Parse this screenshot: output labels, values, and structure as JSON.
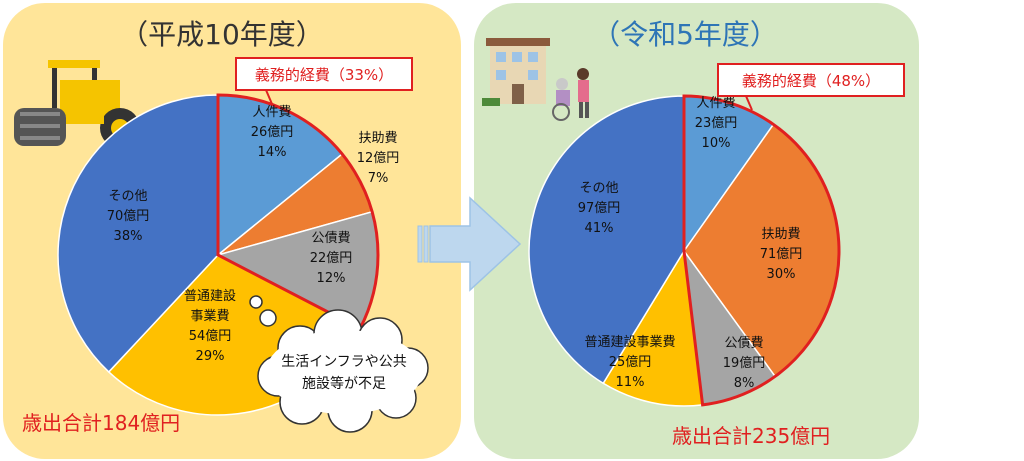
{
  "colors": {
    "left_bg": "#FFE599",
    "right_bg": "#D5E8C4",
    "jinkenhi": "#5B9BD5",
    "fujohi": "#ED7D31",
    "kosaihi": "#A5A5A5",
    "futsu": "#FFC000",
    "sonota": "#4472C4",
    "highlight": "#E02020",
    "arrow": "#BDD7EE"
  },
  "chart_data": [
    {
      "type": "pie",
      "title": "（平成10年度）",
      "total_label": "歳出合計184億円",
      "highlight_label": "義務的経費（33%）",
      "callout": [
        "生活インフラや公共",
        "施設等が不足"
      ],
      "slices": [
        {
          "key": "jinkenhi",
          "lines": [
            "人件費",
            "26億円",
            "14%"
          ],
          "value": 26,
          "percent": 14,
          "color": "#5B9BD5"
        },
        {
          "key": "fujohi",
          "lines": [
            "扶助費",
            "12億円",
            "7%"
          ],
          "value": 12,
          "percent": 7,
          "color": "#ED7D31"
        },
        {
          "key": "kosaihi",
          "lines": [
            "公債費",
            "22億円",
            "12%"
          ],
          "value": 22,
          "percent": 12,
          "color": "#A5A5A5"
        },
        {
          "key": "futsu",
          "lines": [
            "普通建設",
            "事業費",
            "54億円",
            "29%"
          ],
          "value": 54,
          "percent": 29,
          "color": "#FFC000"
        },
        {
          "key": "sonota",
          "lines": [
            "その他",
            "70億円",
            "38%"
          ],
          "value": 70,
          "percent": 38,
          "color": "#4472C4"
        }
      ]
    },
    {
      "type": "pie",
      "title": "（令和5年度）",
      "total_label": "歳出合計235億円",
      "highlight_label": "義務的経費（48%）",
      "slices": [
        {
          "key": "jinkenhi",
          "lines": [
            "人件費",
            "23億円",
            "10%"
          ],
          "value": 23,
          "percent": 10,
          "color": "#5B9BD5"
        },
        {
          "key": "fujohi",
          "lines": [
            "扶助費",
            "71億円",
            "30%"
          ],
          "value": 71,
          "percent": 30,
          "color": "#ED7D31"
        },
        {
          "key": "kosaihi",
          "lines": [
            "公債費",
            "19億円",
            "8%"
          ],
          "value": 19,
          "percent": 8,
          "color": "#A5A5A5"
        },
        {
          "key": "futsu",
          "lines": [
            "普通建設事業費",
            "25億円",
            "11%"
          ],
          "value": 25,
          "percent": 11,
          "color": "#FFC000"
        },
        {
          "key": "sonota",
          "lines": [
            "その他",
            "97億円",
            "41%"
          ],
          "value": 97,
          "percent": 41,
          "color": "#4472C4"
        }
      ]
    }
  ]
}
